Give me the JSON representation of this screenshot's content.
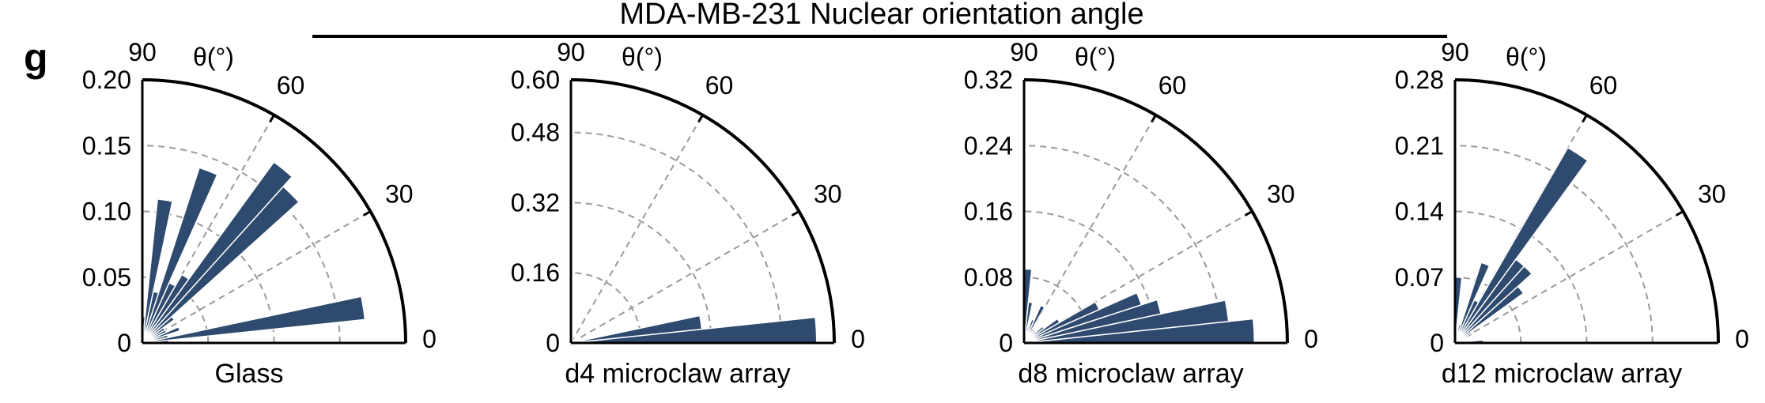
{
  "figure": {
    "title": "MDA-MB-231 Nuclear orientation angle",
    "panel_label": "g",
    "theta_label": "θ(°)",
    "bar_color": "#2e4a6e"
  },
  "chart_data": [
    {
      "type": "polar-bar",
      "subtitle": "Glass",
      "theta_ticks": [
        "0",
        "30",
        "60",
        "90"
      ],
      "rlim": [
        0,
        0.2
      ],
      "r_ticks": [
        "0",
        "0.05",
        "0.10",
        "0.15",
        "0.20"
      ],
      "bin_width_deg": 6,
      "bins": [
        {
          "theta": 3,
          "r": 0.02
        },
        {
          "theta": 9,
          "r": 0.17
        },
        {
          "theta": 15,
          "r": 0.02
        },
        {
          "theta": 21,
          "r": 0.03
        },
        {
          "theta": 27,
          "r": 0.02
        },
        {
          "theta": 33,
          "r": 0.02
        },
        {
          "theta": 39,
          "r": 0.03
        },
        {
          "theta": 45,
          "r": 0.16
        },
        {
          "theta": 51,
          "r": 0.17
        },
        {
          "theta": 57,
          "r": 0.06
        },
        {
          "theta": 63,
          "r": 0.05
        },
        {
          "theta": 69,
          "r": 0.14
        },
        {
          "theta": 75,
          "r": 0.04
        },
        {
          "theta": 81,
          "r": 0.11
        },
        {
          "theta": 87,
          "r": 0.02
        }
      ]
    },
    {
      "type": "polar-bar",
      "subtitle": "d4 microclaw array",
      "theta_ticks": [
        "0",
        "30",
        "60",
        "90"
      ],
      "rlim": [
        0,
        0.6
      ],
      "r_ticks": [
        "0",
        "0.16",
        "0.32",
        "0.48",
        "0.60"
      ],
      "bin_width_deg": 6,
      "bins": [
        {
          "theta": 3,
          "r": 0.56
        },
        {
          "theta": 9,
          "r": 0.3
        },
        {
          "theta": 15,
          "r": 0.03
        },
        {
          "theta": 21,
          "r": 0.03
        },
        {
          "theta": 27,
          "r": 0.02
        },
        {
          "theta": 33,
          "r": 0.02
        },
        {
          "theta": 39,
          "r": 0.01
        },
        {
          "theta": 45,
          "r": 0.01
        },
        {
          "theta": 51,
          "r": 0.01
        },
        {
          "theta": 57,
          "r": 0.01
        },
        {
          "theta": 63,
          "r": 0.01
        },
        {
          "theta": 69,
          "r": 0.01
        },
        {
          "theta": 75,
          "r": 0.01
        },
        {
          "theta": 81,
          "r": 0.01
        },
        {
          "theta": 87,
          "r": 0.01
        }
      ]
    },
    {
      "type": "polar-bar",
      "subtitle": "d8 microclaw array",
      "theta_ticks": [
        "0",
        "30",
        "60",
        "90"
      ],
      "rlim": [
        0,
        0.32
      ],
      "r_ticks": [
        "0",
        "0.08",
        "0.16",
        "0.24",
        "0.32"
      ],
      "bin_width_deg": 6,
      "bins": [
        {
          "theta": 3,
          "r": 0.28
        },
        {
          "theta": 9,
          "r": 0.25
        },
        {
          "theta": 15,
          "r": 0.17
        },
        {
          "theta": 21,
          "r": 0.15
        },
        {
          "theta": 27,
          "r": 0.1
        },
        {
          "theta": 33,
          "r": 0.05
        },
        {
          "theta": 39,
          "r": 0.03
        },
        {
          "theta": 45,
          "r": 0.02
        },
        {
          "theta": 51,
          "r": 0.02
        },
        {
          "theta": 57,
          "r": 0.02
        },
        {
          "theta": 63,
          "r": 0.05
        },
        {
          "theta": 69,
          "r": 0.03
        },
        {
          "theta": 75,
          "r": 0.02
        },
        {
          "theta": 81,
          "r": 0.05
        },
        {
          "theta": 87,
          "r": 0.09
        }
      ]
    },
    {
      "type": "polar-bar",
      "subtitle": "d12 microclaw array",
      "theta_ticks": [
        "0",
        "30",
        "60",
        "90"
      ],
      "rlim": [
        0,
        0.28
      ],
      "r_ticks": [
        "0",
        "0.07",
        "0.14",
        "0.21",
        "0.28"
      ],
      "bin_width_deg": 6,
      "bins": [
        {
          "theta": 3,
          "r": 0.03
        },
        {
          "theta": 9,
          "r": 0.01
        },
        {
          "theta": 15,
          "r": 0.01
        },
        {
          "theta": 21,
          "r": 0.01
        },
        {
          "theta": 27,
          "r": 0.02
        },
        {
          "theta": 33,
          "r": 0.02
        },
        {
          "theta": 39,
          "r": 0.09
        },
        {
          "theta": 45,
          "r": 0.11
        },
        {
          "theta": 51,
          "r": 0.11
        },
        {
          "theta": 57,
          "r": 0.24
        },
        {
          "theta": 63,
          "r": 0.05
        },
        {
          "theta": 69,
          "r": 0.09
        },
        {
          "theta": 75,
          "r": 0.02
        },
        {
          "theta": 81,
          "r": 0.01
        },
        {
          "theta": 87,
          "r": 0.07
        }
      ]
    }
  ]
}
